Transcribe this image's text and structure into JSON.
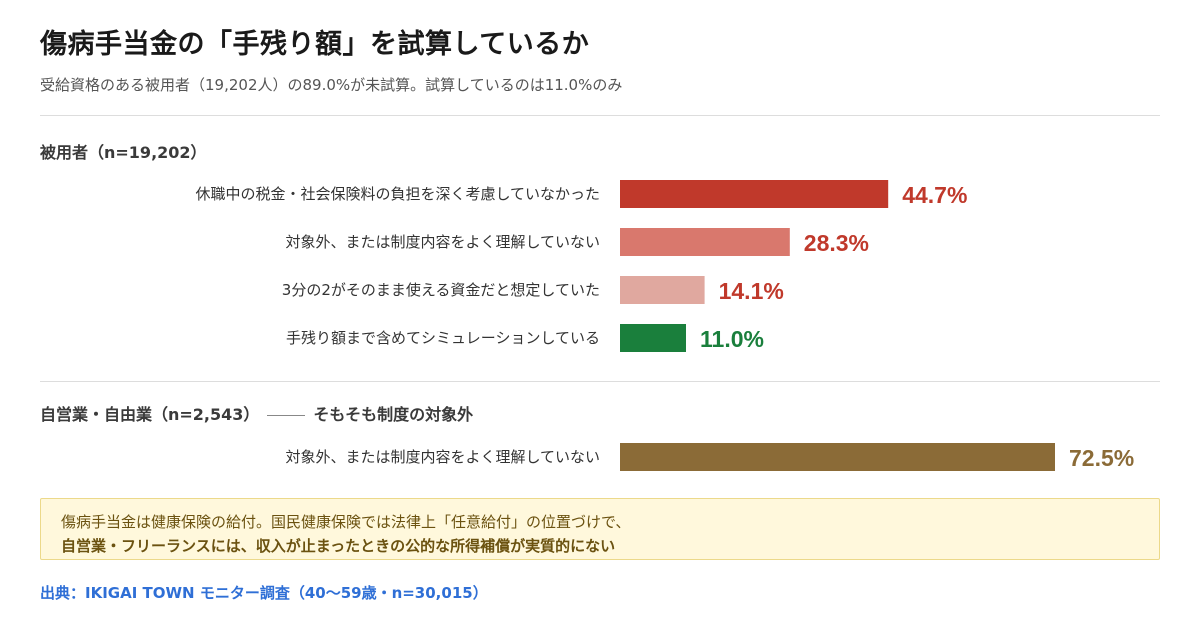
{
  "title": "傷病手当金の「手残り額」を試算しているか",
  "subtitle": "受給資格のある被用者（19,202人）の89.0%が未試算。試算しているのは11.0%のみ",
  "sections": [
    {
      "label": "被用者（n=19,202）",
      "note": ""
    },
    {
      "label": "自営業・自由業（n=2,543）",
      "note": "そもそも制度の対象外"
    }
  ],
  "chart_data": [
    {
      "type": "bar",
      "orientation": "horizontal",
      "categories": [
        "休職中の税金・社会保険料の負担を深く考慮していなかった",
        "対象外、または制度内容をよく理解していない",
        "3分の2がそのまま使える資金だと想定していた",
        "手残り額まで含めてシミュレーションしている"
      ],
      "values": [
        44.7,
        28.3,
        14.1,
        11.0
      ],
      "labels": [
        "44.7%",
        "28.3%",
        "14.1%",
        "11.0%"
      ],
      "colors": [
        "#c0392b",
        "#d9786d",
        "#e0a89f",
        "#1a7f3c"
      ],
      "label_colors": [
        "#c0392b",
        "#c0392b",
        "#c0392b",
        "#1a7f3c"
      ],
      "xlim": [
        0,
        100
      ]
    },
    {
      "type": "bar",
      "orientation": "horizontal",
      "categories": [
        "対象外、または制度内容をよく理解していない"
      ],
      "values": [
        72.5
      ],
      "labels": [
        "72.5%"
      ],
      "colors": [
        "#8b6b37"
      ],
      "label_colors": [
        "#8b6b37"
      ],
      "xlim": [
        0,
        100
      ]
    }
  ],
  "note": {
    "line1": "傷病手当金は健康保険の給付。国民健康保険では法律上「任意給付」の位置づけで、",
    "line2": "自営業・フリーランスには、収入が止まったときの公的な所得補償が実質的にない"
  },
  "source": "出典：IKIGAI TOWN モニター調査（40〜59歳・n=30,015）"
}
